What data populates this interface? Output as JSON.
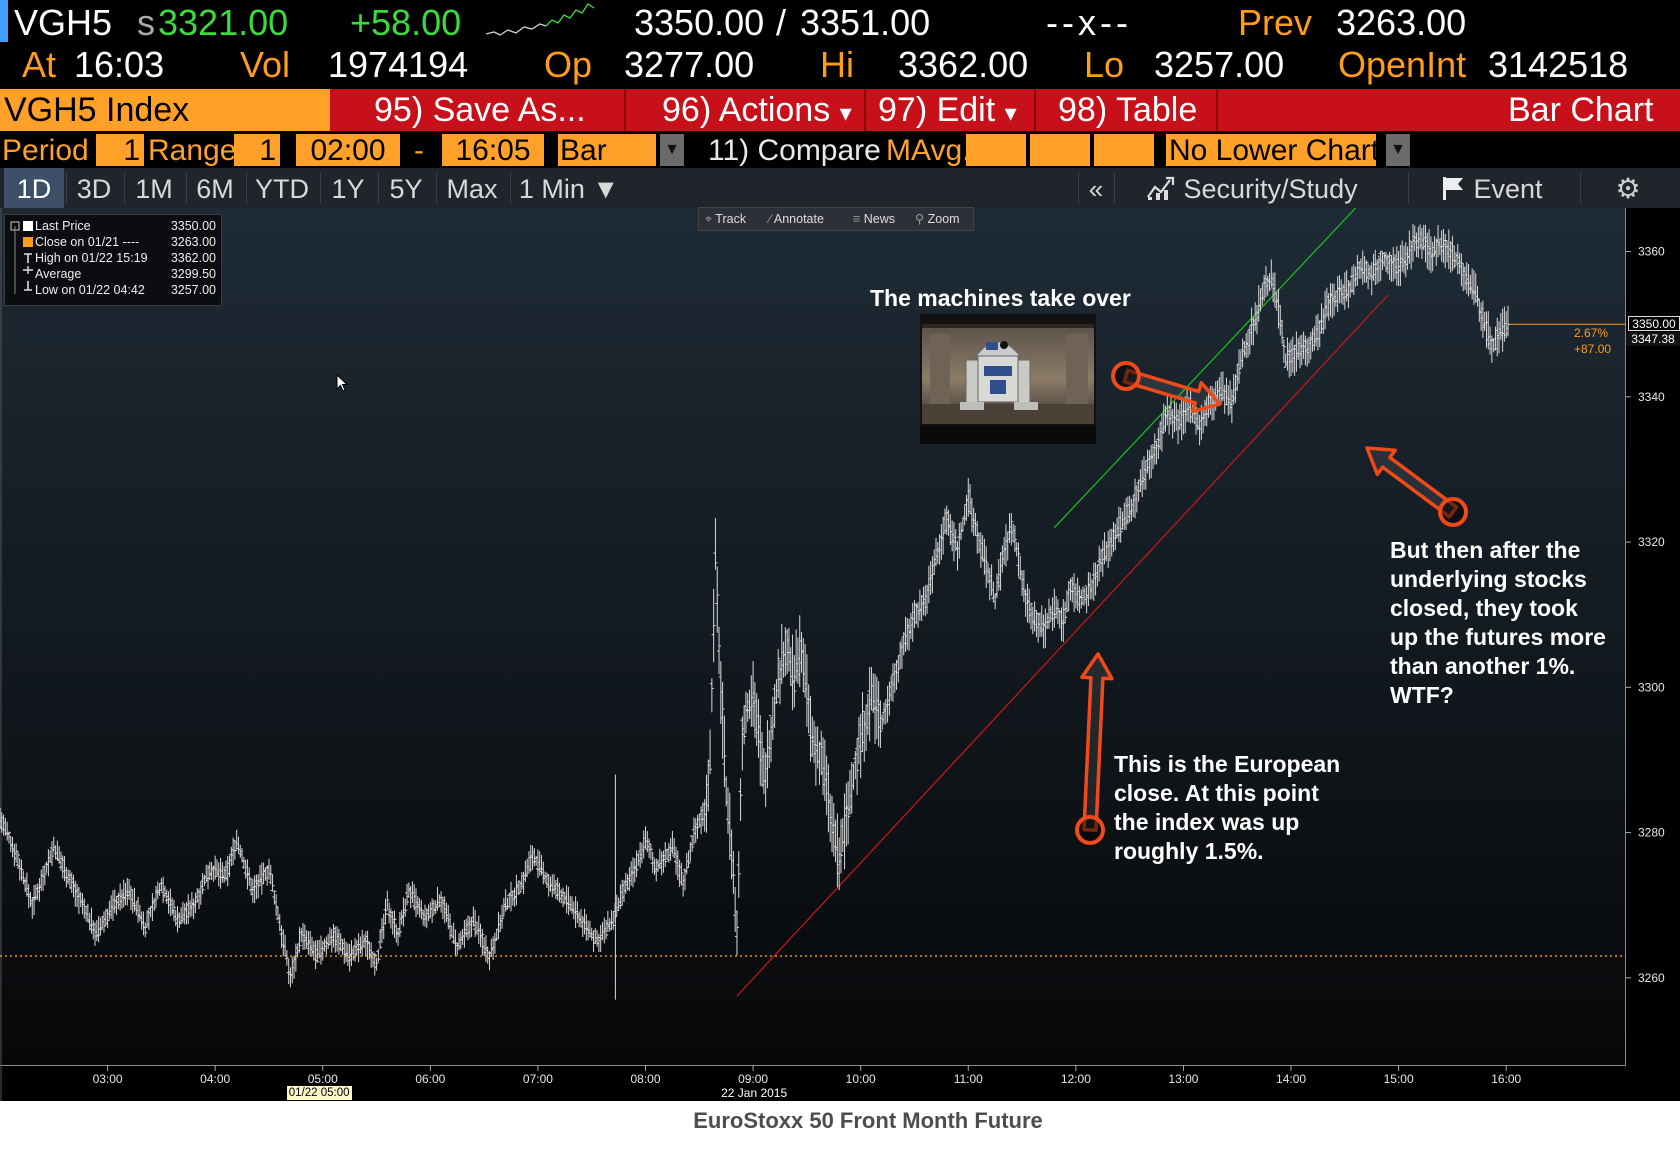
{
  "quote": {
    "ticker": "VGH5",
    "last_prefix": "s",
    "last": "3321.00",
    "change": "+58.00",
    "bid": "3350.00",
    "ask_sep": "/",
    "ask": "3351.00",
    "size": "--x--",
    "prev_label": "Prev",
    "prev": "3263.00",
    "at_label": "At",
    "at": "16:03",
    "vol_label": "Vol",
    "vol": "1974194",
    "op_label": "Op",
    "op": "3277.00",
    "hi_label": "Hi",
    "hi": "3362.00",
    "lo_label": "Lo",
    "lo": "3257.00",
    "oi_label": "OpenInt",
    "oi": "3142518"
  },
  "function_bar": {
    "security": "VGH5 Index",
    "save_as": "95) Save As...",
    "actions": "96) Actions",
    "edit": "97) Edit",
    "table": "98) Table",
    "chart_type": "Bar Chart",
    "dropdown_glyph": "▾"
  },
  "params": {
    "period_label": "Period",
    "period_value": "1",
    "range_label": "Range",
    "range_value": "1",
    "start_time": "02:00",
    "dash": "-",
    "end_time": "16:05",
    "bar_type": "Bar",
    "compare": "11) Compare",
    "mavg": "MAvg.",
    "lower_chart": "No Lower Chart",
    "arrow_glyph": "▼"
  },
  "tabs": {
    "items": [
      "1D",
      "3D",
      "1M",
      "6M",
      "YTD",
      "1Y",
      "5Y",
      "Max",
      "1 Min ▼"
    ],
    "active": "1D",
    "collapse": "«",
    "security_study": "Security/Study",
    "event": "Event",
    "gear": "⚙"
  },
  "toolbar": {
    "track": "Track",
    "annotate": "Annotate",
    "news": "News",
    "zoom": "Zoom"
  },
  "legend": {
    "rows": [
      {
        "label": "Last Price",
        "value": "3350.00"
      },
      {
        "label": "Close on 01/21 ----",
        "value": "3263.00"
      },
      {
        "label": "High on 01/22 15:19",
        "value": "3362.00"
      },
      {
        "label": "Average",
        "value": "3299.50"
      },
      {
        "label": "Low on 01/22 04:42",
        "value": "3257.00"
      }
    ]
  },
  "annotations": {
    "machines_title": "The machines take over",
    "european_close": [
      "This is the European",
      "close.  At this point",
      "the index was up",
      "roughly 1.5%."
    ],
    "after_close": [
      "But then after the",
      "underlying stocks",
      "closed, they took",
      "up the futures more",
      "than another 1%.",
      "WTF?"
    ]
  },
  "chart_data": {
    "type": "line",
    "title": "EuroStoxx 50 Front Month Future",
    "y_ticks": [
      3260,
      3280,
      3300,
      3320,
      3340,
      3360
    ],
    "ylim": [
      3248,
      3366
    ],
    "x_ticks": [
      "03:00",
      "04:00",
      "05:00",
      "06:00",
      "07:00",
      "08:00",
      "09:00",
      "10:00",
      "11:00",
      "12:00",
      "13:00",
      "14:00",
      "15:00",
      "16:00"
    ],
    "xlim_hours": [
      2.0,
      16.5
    ],
    "x_date_marker": "01/22 05:00",
    "x_date_label": "22 Jan 2015",
    "prev_close": 3263.0,
    "last_label": "3350.00",
    "last_value": 3350.0,
    "avg_label": "3347.38",
    "avg_value": 3347.38,
    "pct_change": "2.67%",
    "abs_change": "+87.00",
    "colors": {
      "price": "#d9d9d9",
      "prev_close": "#ff9c1a",
      "trend_up": "#19c319",
      "trend_low": "#cc1818",
      "arrow": "#f04a1a"
    },
    "series": [
      {
        "points": [
          [
            2.0,
            3282
          ],
          [
            2.15,
            3277
          ],
          [
            2.3,
            3270
          ],
          [
            2.5,
            3278
          ],
          [
            2.7,
            3272
          ],
          [
            2.9,
            3266
          ],
          [
            3.05,
            3270
          ],
          [
            3.2,
            3272
          ],
          [
            3.35,
            3267
          ],
          [
            3.5,
            3273
          ],
          [
            3.65,
            3268
          ],
          [
            3.8,
            3270
          ],
          [
            3.95,
            3275
          ],
          [
            4.1,
            3274
          ],
          [
            4.2,
            3279
          ],
          [
            4.35,
            3272
          ],
          [
            4.5,
            3275
          ],
          [
            4.62,
            3266
          ],
          [
            4.7,
            3260
          ],
          [
            4.8,
            3266
          ],
          [
            4.95,
            3263
          ],
          [
            5.1,
            3266
          ],
          [
            5.25,
            3263
          ],
          [
            5.4,
            3265
          ],
          [
            5.5,
            3262
          ],
          [
            5.6,
            3270
          ],
          [
            5.7,
            3266
          ],
          [
            5.8,
            3272
          ],
          [
            5.95,
            3268
          ],
          [
            6.1,
            3271
          ],
          [
            6.25,
            3264
          ],
          [
            6.4,
            3268
          ],
          [
            6.55,
            3263
          ],
          [
            6.7,
            3270
          ],
          [
            6.85,
            3273
          ],
          [
            6.95,
            3277
          ],
          [
            7.1,
            3273
          ],
          [
            7.25,
            3271
          ],
          [
            7.4,
            3268
          ],
          [
            7.55,
            3265
          ],
          [
            7.7,
            3268
          ],
          [
            7.8,
            3272
          ],
          [
            7.9,
            3275
          ],
          [
            8.0,
            3279
          ],
          [
            8.1,
            3275
          ],
          [
            8.25,
            3278
          ],
          [
            8.35,
            3273
          ],
          [
            8.45,
            3280
          ],
          [
            8.55,
            3283
          ],
          [
            8.6,
            3290
          ],
          [
            8.65,
            3318
          ],
          [
            8.7,
            3300
          ],
          [
            8.75,
            3286
          ],
          [
            8.8,
            3278
          ],
          [
            8.85,
            3265
          ],
          [
            8.9,
            3294
          ],
          [
            9.0,
            3300
          ],
          [
            9.1,
            3287
          ],
          [
            9.2,
            3298
          ],
          [
            9.3,
            3306
          ],
          [
            9.38,
            3301
          ],
          [
            9.45,
            3306
          ],
          [
            9.55,
            3292
          ],
          [
            9.65,
            3290
          ],
          [
            9.72,
            3282
          ],
          [
            9.8,
            3276
          ],
          [
            9.9,
            3285
          ],
          [
            10.0,
            3293
          ],
          [
            10.1,
            3299
          ],
          [
            10.2,
            3295
          ],
          [
            10.3,
            3301
          ],
          [
            10.4,
            3306
          ],
          [
            10.5,
            3310
          ],
          [
            10.6,
            3312
          ],
          [
            10.7,
            3318
          ],
          [
            10.8,
            3323
          ],
          [
            10.9,
            3319
          ],
          [
            11.0,
            3326
          ],
          [
            11.1,
            3320
          ],
          [
            11.18,
            3316
          ],
          [
            11.25,
            3312
          ],
          [
            11.32,
            3318
          ],
          [
            11.4,
            3322
          ],
          [
            11.45,
            3319
          ],
          [
            11.52,
            3313
          ],
          [
            11.6,
            3310
          ],
          [
            11.7,
            3308
          ],
          [
            11.8,
            3311
          ],
          [
            11.88,
            3309
          ],
          [
            11.95,
            3314
          ],
          [
            12.05,
            3312
          ],
          [
            12.15,
            3314
          ],
          [
            12.25,
            3318
          ],
          [
            12.35,
            3321
          ],
          [
            12.45,
            3323
          ],
          [
            12.55,
            3326
          ],
          [
            12.65,
            3330
          ],
          [
            12.75,
            3333
          ],
          [
            12.85,
            3338
          ],
          [
            12.95,
            3336
          ],
          [
            13.05,
            3339
          ],
          [
            13.15,
            3336
          ],
          [
            13.25,
            3339
          ],
          [
            13.35,
            3341
          ],
          [
            13.45,
            3339
          ],
          [
            13.55,
            3346
          ],
          [
            13.65,
            3350
          ],
          [
            13.75,
            3355
          ],
          [
            13.82,
            3356
          ],
          [
            13.9,
            3351
          ],
          [
            13.95,
            3345
          ],
          [
            14.05,
            3346
          ],
          [
            14.15,
            3347
          ],
          [
            14.25,
            3349
          ],
          [
            14.35,
            3353
          ],
          [
            14.45,
            3354
          ],
          [
            14.55,
            3355
          ],
          [
            14.65,
            3358
          ],
          [
            14.75,
            3357
          ],
          [
            14.85,
            3359
          ],
          [
            15.0,
            3358
          ],
          [
            15.1,
            3360
          ],
          [
            15.19,
            3362
          ],
          [
            15.3,
            3360
          ],
          [
            15.4,
            3361
          ],
          [
            15.5,
            3360
          ],
          [
            15.6,
            3357
          ],
          [
            15.7,
            3355
          ],
          [
            15.8,
            3350
          ],
          [
            15.88,
            3347
          ],
          [
            15.95,
            3349
          ],
          [
            16.03,
            3350
          ]
        ]
      }
    ]
  }
}
